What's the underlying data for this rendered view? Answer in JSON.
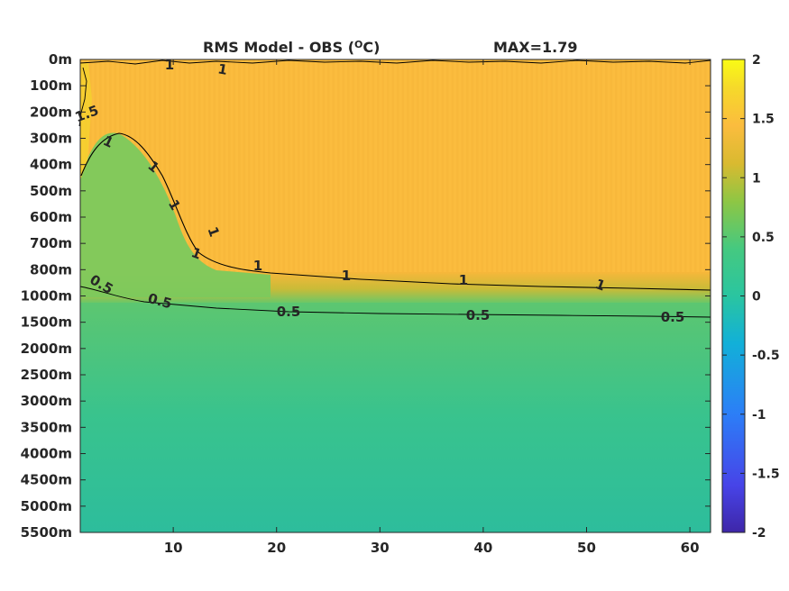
{
  "chart_data": {
    "type": "heatmap",
    "title": "RMS Model - OBS (",
    "title_superscript": "O",
    "title_suffix": "C)",
    "max_label": "MAX=1.79",
    "xlabel": "",
    "ylabel": "",
    "xlim": [
      1,
      62
    ],
    "x_ticks": [
      10,
      20,
      30,
      40,
      50,
      60
    ],
    "y_ticks": [
      "0m",
      "100m",
      "200m",
      "300m",
      "400m",
      "500m",
      "600m",
      "700m",
      "800m",
      "1000m",
      "1500m",
      "2000m",
      "2500m",
      "3000m",
      "3500m",
      "4000m",
      "4500m",
      "5000m",
      "5500m"
    ],
    "colorbar": {
      "range": [
        -2,
        2
      ],
      "ticks": [
        2,
        1.5,
        1,
        0.5,
        0,
        -0.5,
        -1,
        -1.5,
        -2
      ],
      "colors": [
        "#3e26a8",
        "#4744e8",
        "#2c7ef7",
        "#12b0d8",
        "#2ac5a0",
        "#45c980",
        "#8ec644",
        "#d9ba30",
        "#fbbc3e",
        "#f6d92a",
        "#f9fb15"
      ]
    },
    "field_approx": {
      "upper_layer_value": 1.3,
      "deep_layer_value": 0.4,
      "transition_depth": "1000m"
    },
    "contour_labels": [
      "1",
      "1",
      "1.5",
      "1",
      "1",
      "1",
      "1",
      "1",
      "1",
      "1",
      "1",
      "1",
      "0.5",
      "0.5",
      "0.5",
      "0.5",
      "0.5"
    ]
  }
}
